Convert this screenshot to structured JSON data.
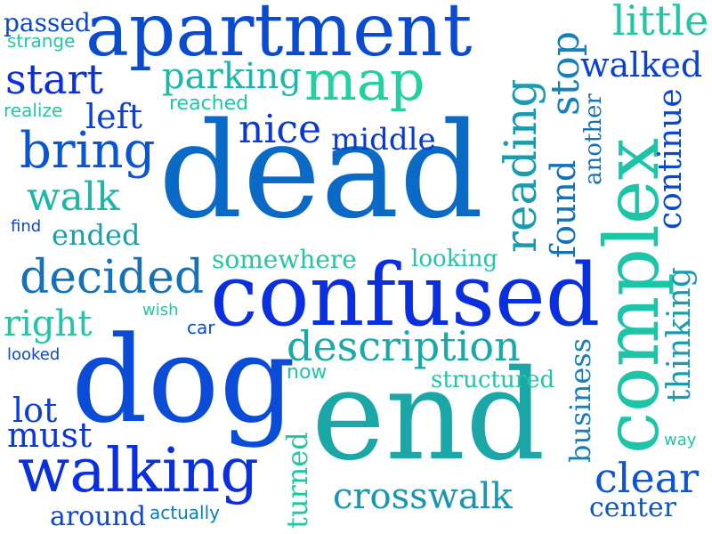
{
  "words": [
    {
      "text": "dead",
      "color": "#0a6ac6"
    },
    {
      "text": "confused",
      "color": "#0a2fe0"
    },
    {
      "text": "end",
      "color": "#1ba6a8"
    },
    {
      "text": "dog",
      "color": "#0a4bd8"
    },
    {
      "text": "apartment",
      "color": "#0a4bd0"
    },
    {
      "text": "complex",
      "color": "#1cc4a8"
    },
    {
      "text": "map",
      "color": "#22d0a0"
    },
    {
      "text": "walking",
      "color": "#0a2fe0"
    },
    {
      "text": "description",
      "color": "#1aa8a8"
    },
    {
      "text": "crosswalk",
      "color": "#1696b0"
    },
    {
      "text": "decided",
      "color": "#1672b8"
    },
    {
      "text": "reading",
      "color": "#1a9cb0"
    },
    {
      "text": "bring",
      "color": "#0a55d4"
    },
    {
      "text": "nice",
      "color": "#0a38d8"
    },
    {
      "text": "start",
      "color": "#0a2fe0"
    },
    {
      "text": "clear",
      "color": "#0a55d4"
    },
    {
      "text": "walk",
      "color": "#1cb6a6"
    },
    {
      "text": "stop",
      "color": "#1680b8"
    },
    {
      "text": "parking",
      "color": "#1ab8aa"
    },
    {
      "text": "little",
      "color": "#22c6a4"
    },
    {
      "text": "walked",
      "color": "#0a40d8"
    },
    {
      "text": "middle",
      "color": "#0a38d8"
    },
    {
      "text": "right",
      "color": "#22c6a4"
    },
    {
      "text": "must",
      "color": "#0a38d8"
    },
    {
      "text": "lot",
      "color": "#0a40d8"
    },
    {
      "text": "left",
      "color": "#0a40d8"
    },
    {
      "text": "ended",
      "color": "#1aa0a8"
    },
    {
      "text": "found",
      "color": "#1672b8"
    },
    {
      "text": "continue",
      "color": "#0a48d4"
    },
    {
      "text": "thinking",
      "color": "#1a9cb0"
    },
    {
      "text": "business",
      "color": "#1680b8"
    },
    {
      "text": "turned",
      "color": "#22c6a4"
    },
    {
      "text": "somewhere",
      "color": "#22c6a4"
    },
    {
      "text": "around",
      "color": "#0a48d4"
    },
    {
      "text": "center",
      "color": "#0a55d4"
    },
    {
      "text": "structured",
      "color": "#22c6a4"
    },
    {
      "text": "another",
      "color": "#1672b8"
    },
    {
      "text": "looking",
      "color": "#22c6a4"
    },
    {
      "text": "passed",
      "color": "#0a48d4"
    },
    {
      "text": "strange",
      "color": "#22c6a4"
    },
    {
      "text": "realize",
      "color": "#22c6a4"
    },
    {
      "text": "reached",
      "color": "#22c6a4"
    },
    {
      "text": "find",
      "color": "#0a48d4"
    },
    {
      "text": "car",
      "color": "#0a4bd0"
    },
    {
      "text": "wish",
      "color": "#22c6a4"
    },
    {
      "text": "looked",
      "color": "#0a48d4"
    },
    {
      "text": "now",
      "color": "#22c6a4"
    },
    {
      "text": "actually",
      "color": "#0a80b8"
    },
    {
      "text": "way",
      "color": "#22c6a4"
    }
  ]
}
